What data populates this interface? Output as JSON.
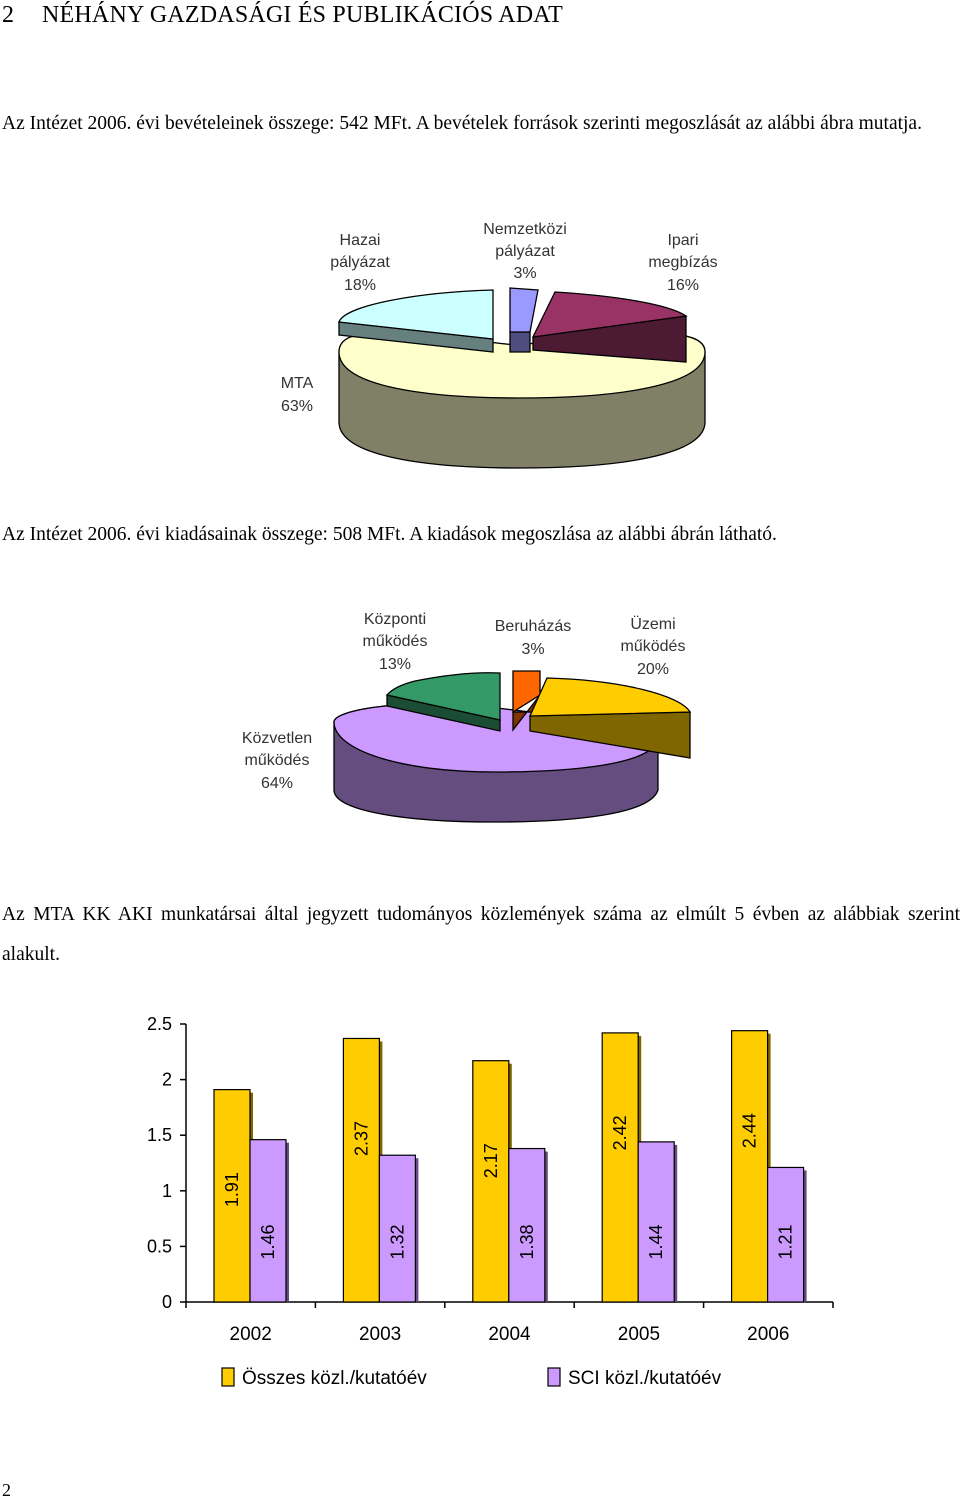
{
  "heading": {
    "number": "2",
    "title": "NÉHÁNY GAZDASÁGI ÉS PUBLIKÁCIÓS ADAT"
  },
  "paragraphs": {
    "revenue": "Az Intézet 2006. évi bevételeinek összege: 542 MFt. A bevételek források szerinti megoszlását az alábbi ábra mutatja.",
    "expenses": "Az Intézet 2006. évi kiadásainak összege: 508 MFt. A kiadások megoszlása az alábbi ábrán látható.",
    "publications": "Az MTA KK AKI munkatársai által jegyzett tudományos közlemények száma az elmúlt 5 évben az alábbiak szerint alakult."
  },
  "chart_data": [
    {
      "type": "pie",
      "slices": [
        {
          "label": [
            "Hazai",
            "pályázat"
          ],
          "value": 18,
          "value_label": "18%",
          "color": "#ccffff"
        },
        {
          "label": [
            "Nemzetközi",
            "pályázat"
          ],
          "value": 3,
          "value_label": "3%",
          "color": "#9999ff"
        },
        {
          "label": [
            "Ipari",
            "megbízás"
          ],
          "value": 16,
          "value_label": "16%",
          "color": "#993366"
        },
        {
          "label": [
            "MTA"
          ],
          "value": 63,
          "value_label": "63%",
          "color": "#ffffcc"
        }
      ]
    },
    {
      "type": "pie",
      "slices": [
        {
          "label": [
            "Központi",
            "működés"
          ],
          "value": 13,
          "value_label": "13%",
          "color": "#339966"
        },
        {
          "label": [
            "Beruházás"
          ],
          "value": 3,
          "value_label": "3%",
          "color": "#ff6600"
        },
        {
          "label": [
            "Üzemi",
            "működés"
          ],
          "value": 20,
          "value_label": "20%",
          "color": "#ffcc00"
        },
        {
          "label": [
            "Közvetlen",
            "működés"
          ],
          "value": 64,
          "value_label": "64%",
          "color": "#cc99ff"
        }
      ]
    },
    {
      "type": "bar",
      "categories": [
        "2002",
        "2003",
        "2004",
        "2005",
        "2006"
      ],
      "series": [
        {
          "name": "Összes közl./kutatóév",
          "values": [
            1.91,
            2.37,
            2.17,
            2.42,
            2.44
          ],
          "labels": [
            "1.91",
            "2.37",
            "2.17",
            "2.42",
            "2.44"
          ],
          "color": "#ffcc00"
        },
        {
          "name": "SCI közl./kutatóév",
          "values": [
            1.46,
            1.32,
            1.38,
            1.44,
            1.21
          ],
          "labels": [
            "1.46",
            "1.32",
            "1.38",
            "1.44",
            "1.21"
          ],
          "color": "#cc99ff"
        }
      ],
      "yticks": [
        "0",
        "0.5",
        "1",
        "1.5",
        "2",
        "2.5"
      ],
      "ylim": [
        0,
        2.5
      ],
      "legend": "bottom"
    }
  ],
  "page_number": "2"
}
